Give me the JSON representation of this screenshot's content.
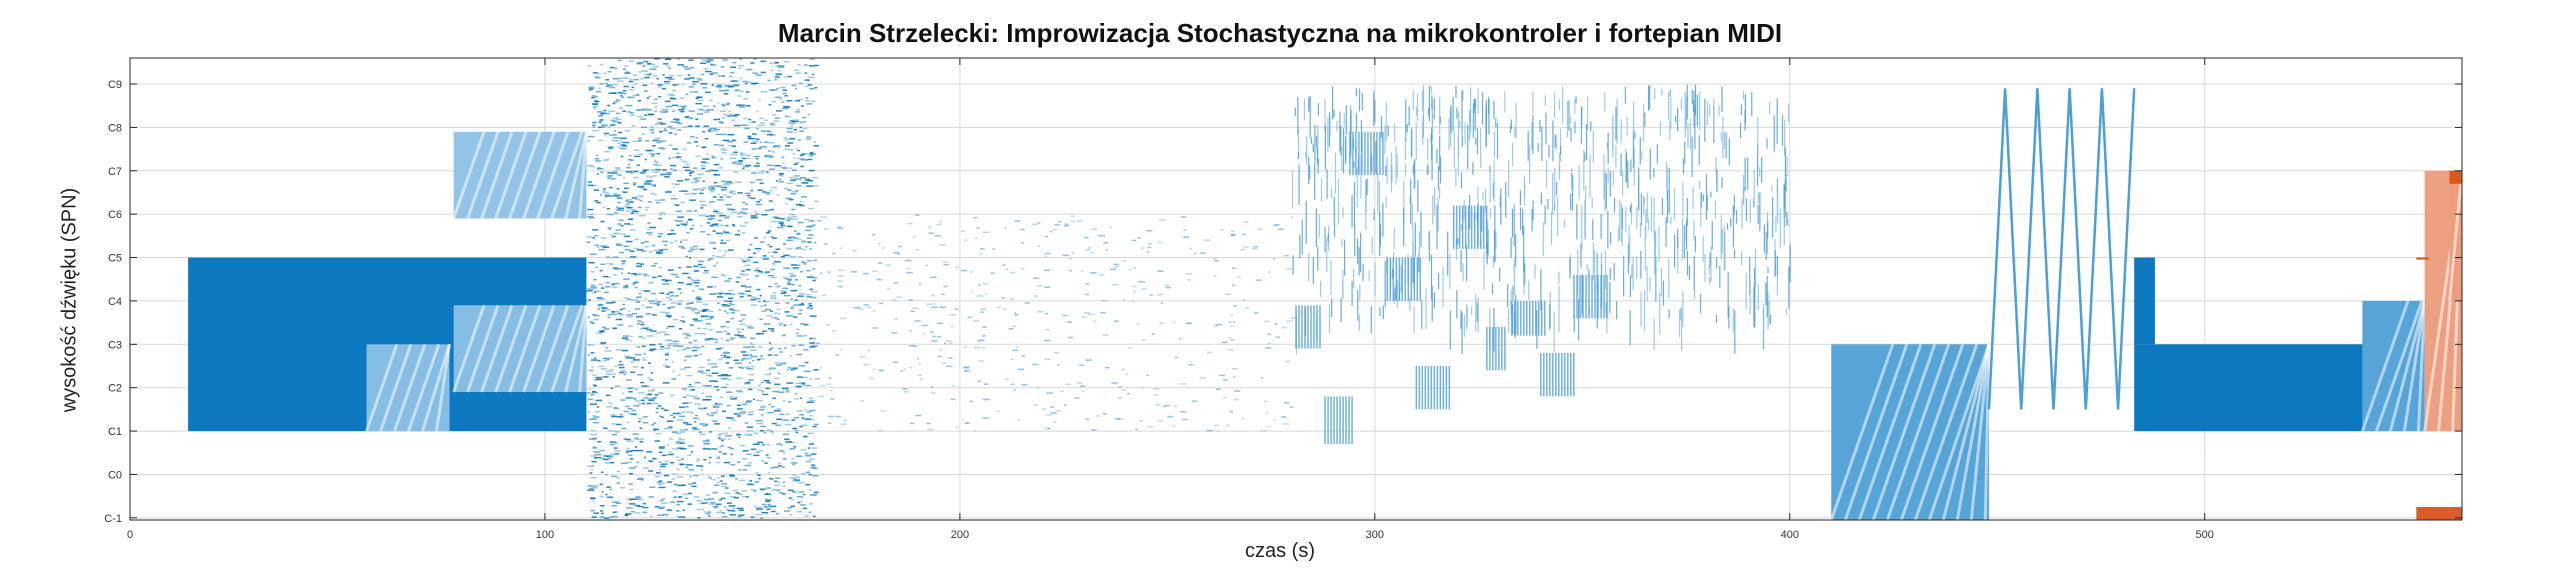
{
  "chart_data": {
    "type": "scatter",
    "title": "Marcin Strzelecki: Improwizacja Stochastyczna na mikrokontroler i fortepian MIDI",
    "xlabel": "czas (s)",
    "ylabel": "wysokość dźwięku (SPN)",
    "xlim": [
      0,
      562
    ],
    "ylim": [
      -1.05,
      9.6
    ],
    "xticks": [
      0,
      100,
      200,
      300,
      400,
      500
    ],
    "xtick_labels": [
      "0",
      "100",
      "200",
      "300",
      "400",
      "500"
    ],
    "yticks": [
      -1,
      0,
      1,
      2,
      3,
      4,
      5,
      6,
      7,
      8,
      9
    ],
    "ytick_labels": [
      "C-1",
      "C0",
      "C1",
      "C2",
      "C3",
      "C4",
      "C5",
      "C6",
      "C7",
      "C8",
      "C9"
    ],
    "grid": true,
    "colors": {
      "dark": "#0072bd",
      "light": "#4d9fd6",
      "pale": "#8cc1e6",
      "orange": "#d95319",
      "peach": "#ec9b7a"
    },
    "blocks": [
      {
        "x": [
          14,
          110
        ],
        "y": [
          1.0,
          5.0
        ],
        "color": "#0072bd"
      },
      {
        "x": [
          57,
          77
        ],
        "y": [
          1.0,
          3.0
        ],
        "color": "#8cc1e6"
      },
      {
        "x": [
          78,
          110
        ],
        "y": [
          5.9,
          7.9
        ],
        "color": "#8cc1e6"
      },
      {
        "x": [
          78,
          110
        ],
        "y": [
          1.9,
          3.9
        ],
        "color": "#8cc1e6"
      },
      {
        "x": [
          410,
          448
        ],
        "y": [
          -1.05,
          3.0
        ],
        "color": "#4d9fd6"
      },
      {
        "x": [
          483,
          538
        ],
        "y": [
          1.0,
          3.0
        ],
        "color": "#0072bd"
      },
      {
        "x": [
          483,
          488
        ],
        "y": [
          3.0,
          5.0
        ],
        "color": "#0072bd"
      },
      {
        "x": [
          538,
          553
        ],
        "y": [
          1.0,
          4.0
        ],
        "color": "#4d9fd6"
      },
      {
        "x": [
          553,
          562
        ],
        "y": [
          1.0,
          7.0
        ],
        "color": "#ec9b7a"
      },
      {
        "x": [
          559,
          562
        ],
        "y": [
          4.0,
          7.0
        ],
        "color": "#ec9b7a"
      },
      {
        "x": [
          559,
          562
        ],
        "y": [
          6.7,
          7.0
        ],
        "color": "#d95319"
      },
      {
        "x": [
          551,
          562
        ],
        "y": [
          -1.05,
          -0.75
        ],
        "color": "#d95319"
      }
    ],
    "clusters": [
      {
        "x": [
          110,
          165
        ],
        "y": [
          -1.0,
          9.6
        ],
        "density": "high"
      },
      {
        "x": [
          165,
          280
        ],
        "y": [
          1.0,
          6.0
        ],
        "density": "low"
      },
      {
        "x": [
          280,
          400
        ],
        "y": [
          3.5,
          9.0
        ],
        "density": "medium"
      },
      {
        "x": [
          448,
          483
        ],
        "y": [
          1.5,
          8.9
        ],
        "density": "zigzag"
      }
    ],
    "small_blocks": [
      {
        "x": [
          294,
          302
        ],
        "y": [
          6.9,
          7.9
        ]
      },
      {
        "x": [
          303,
          311
        ],
        "y": [
          4.0,
          5.0
        ]
      },
      {
        "x": [
          319,
          327
        ],
        "y": [
          5.2,
          6.2
        ]
      },
      {
        "x": [
          310,
          318
        ],
        "y": [
          1.5,
          2.5
        ]
      },
      {
        "x": [
          327,
          332
        ],
        "y": [
          2.4,
          3.4
        ]
      },
      {
        "x": [
          333,
          341
        ],
        "y": [
          3.2,
          4.0
        ]
      },
      {
        "x": [
          340,
          348
        ],
        "y": [
          1.8,
          2.8
        ]
      },
      {
        "x": [
          348,
          356
        ],
        "y": [
          3.6,
          4.6
        ]
      },
      {
        "x": [
          281,
          287
        ],
        "y": [
          2.9,
          3.9
        ]
      },
      {
        "x": [
          288,
          295
        ],
        "y": [
          0.7,
          1.8
        ]
      }
    ]
  }
}
